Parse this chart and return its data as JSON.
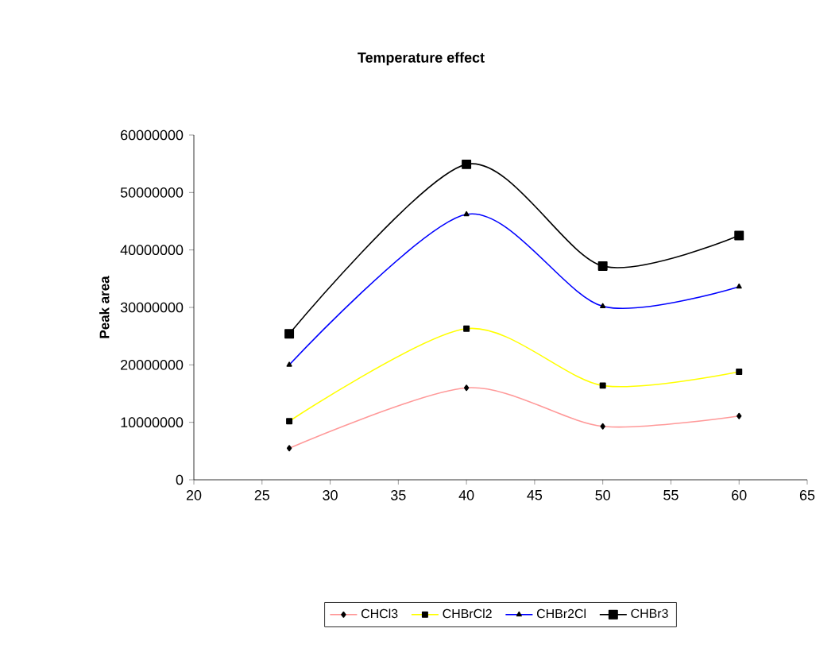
{
  "chart_data": {
    "type": "line",
    "title": "Temperature effect",
    "ylabel": "Peak area",
    "x": [
      27,
      40,
      50,
      60
    ],
    "series": [
      {
        "name": "CHCl3",
        "color": "#ff9999",
        "marker": "diamond",
        "values": [
          5500000,
          16000000,
          9300000,
          11100000
        ]
      },
      {
        "name": "CHBrCl2",
        "color": "#ffff00",
        "marker": "square",
        "values": [
          10200000,
          26300000,
          16400000,
          18800000
        ]
      },
      {
        "name": "CHBr2Cl",
        "color": "#0000ff",
        "marker": "triangle",
        "values": [
          20000000,
          46200000,
          30200000,
          33600000
        ]
      },
      {
        "name": "CHBr3",
        "color": "#000000",
        "marker": "square",
        "values": [
          25400000,
          54900000,
          37200000,
          42500000
        ]
      }
    ],
    "xlim": [
      20,
      65
    ],
    "xticks": [
      20,
      25,
      30,
      35,
      40,
      45,
      50,
      55,
      60,
      65
    ],
    "ylim": [
      0,
      60000000
    ],
    "yticks": [
      0,
      10000000,
      20000000,
      30000000,
      40000000,
      50000000,
      60000000
    ],
    "grid": false,
    "legend": "bottom",
    "line_style": "solid"
  }
}
